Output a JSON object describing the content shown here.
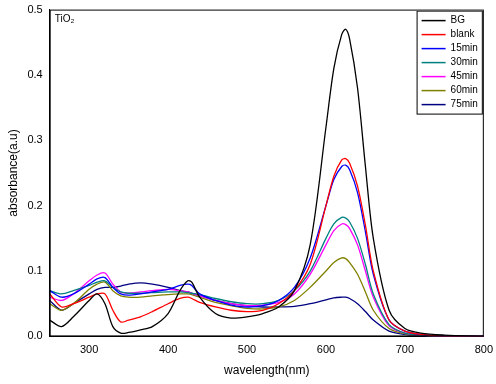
{
  "chart_data": {
    "type": "line",
    "x_label": "wavelength(nm)",
    "y_label": "absorbance(a.u)",
    "annotations": [
      "TiO₂"
    ],
    "x": [
      250,
      265,
      280,
      300,
      310,
      320,
      330,
      340,
      350,
      365,
      380,
      400,
      415,
      425,
      430,
      440,
      460,
      480,
      500,
      520,
      540,
      560,
      580,
      600,
      610,
      620,
      625,
      630,
      640,
      650,
      660,
      680,
      700,
      720,
      750,
      800
    ],
    "series": [
      {
        "name": "BG",
        "color": "#000000",
        "values": [
          0.025,
          0.015,
          0.03,
          0.055,
          0.065,
          0.05,
          0.015,
          0.005,
          0.006,
          0.01,
          0.015,
          0.035,
          0.07,
          0.085,
          0.083,
          0.06,
          0.035,
          0.028,
          0.03,
          0.035,
          0.045,
          0.07,
          0.14,
          0.32,
          0.41,
          0.462,
          0.47,
          0.455,
          0.38,
          0.26,
          0.15,
          0.04,
          0.012,
          0.005,
          0.002,
          0
        ]
      },
      {
        "name": "blank",
        "color": "#ff0000",
        "values": [
          0.065,
          0.045,
          0.05,
          0.06,
          0.065,
          0.065,
          0.04,
          0.022,
          0.025,
          0.03,
          0.038,
          0.05,
          0.058,
          0.06,
          0.058,
          0.052,
          0.045,
          0.04,
          0.038,
          0.04,
          0.05,
          0.07,
          0.11,
          0.2,
          0.245,
          0.27,
          0.272,
          0.265,
          0.23,
          0.17,
          0.1,
          0.025,
          0.008,
          0.003,
          0,
          0
        ]
      },
      {
        "name": "15min",
        "color": "#0000ff",
        "values": [
          0.07,
          0.06,
          0.065,
          0.08,
          0.088,
          0.09,
          0.075,
          0.065,
          0.063,
          0.065,
          0.068,
          0.072,
          0.078,
          0.08,
          0.078,
          0.065,
          0.055,
          0.048,
          0.045,
          0.047,
          0.055,
          0.075,
          0.12,
          0.2,
          0.24,
          0.26,
          0.262,
          0.255,
          0.22,
          0.16,
          0.095,
          0.025,
          0.008,
          0.003,
          0,
          0
        ]
      },
      {
        "name": "30min",
        "color": "#008080",
        "values": [
          0.07,
          0.065,
          0.07,
          0.078,
          0.083,
          0.085,
          0.075,
          0.068,
          0.066,
          0.066,
          0.067,
          0.068,
          0.068,
          0.067,
          0.066,
          0.064,
          0.058,
          0.053,
          0.05,
          0.05,
          0.055,
          0.07,
          0.1,
          0.15,
          0.172,
          0.182,
          0.181,
          0.175,
          0.15,
          0.11,
          0.065,
          0.018,
          0.005,
          0.002,
          0,
          0
        ]
      },
      {
        "name": "45min",
        "color": "#ff00ff",
        "values": [
          0.06,
          0.055,
          0.065,
          0.085,
          0.094,
          0.097,
          0.08,
          0.068,
          0.066,
          0.068,
          0.07,
          0.072,
          0.07,
          0.068,
          0.066,
          0.062,
          0.055,
          0.05,
          0.047,
          0.048,
          0.052,
          0.065,
          0.095,
          0.14,
          0.162,
          0.172,
          0.171,
          0.165,
          0.14,
          0.1,
          0.06,
          0.016,
          0.005,
          0.002,
          0,
          0
        ]
      },
      {
        "name": "60min",
        "color": "#808000",
        "values": [
          0.05,
          0.04,
          0.05,
          0.072,
          0.08,
          0.083,
          0.07,
          0.062,
          0.06,
          0.06,
          0.062,
          0.064,
          0.065,
          0.065,
          0.064,
          0.06,
          0.052,
          0.047,
          0.043,
          0.042,
          0.045,
          0.055,
          0.075,
          0.1,
          0.113,
          0.12,
          0.119,
          0.113,
          0.095,
          0.068,
          0.04,
          0.012,
          0.004,
          0.002,
          0,
          0
        ]
      },
      {
        "name": "75min",
        "color": "#000080",
        "values": [
          0.055,
          0.04,
          0.05,
          0.065,
          0.072,
          0.075,
          0.075,
          0.077,
          0.08,
          0.082,
          0.08,
          0.075,
          0.07,
          0.068,
          0.066,
          0.062,
          0.055,
          0.05,
          0.047,
          0.045,
          0.045,
          0.046,
          0.05,
          0.056,
          0.059,
          0.06,
          0.06,
          0.058,
          0.05,
          0.038,
          0.025,
          0.008,
          0.003,
          0.001,
          0,
          0
        ]
      }
    ],
    "xlim": [
      250,
      800
    ],
    "xticks": [
      300,
      400,
      500,
      600,
      700,
      800
    ],
    "ylim": [
      0,
      0.5
    ],
    "yticks": [
      {
        "value": 0,
        "label": "0.0"
      },
      0.1,
      0.2,
      0.3,
      0.4,
      0.5
    ],
    "grid": false,
    "legend": "upper right"
  }
}
